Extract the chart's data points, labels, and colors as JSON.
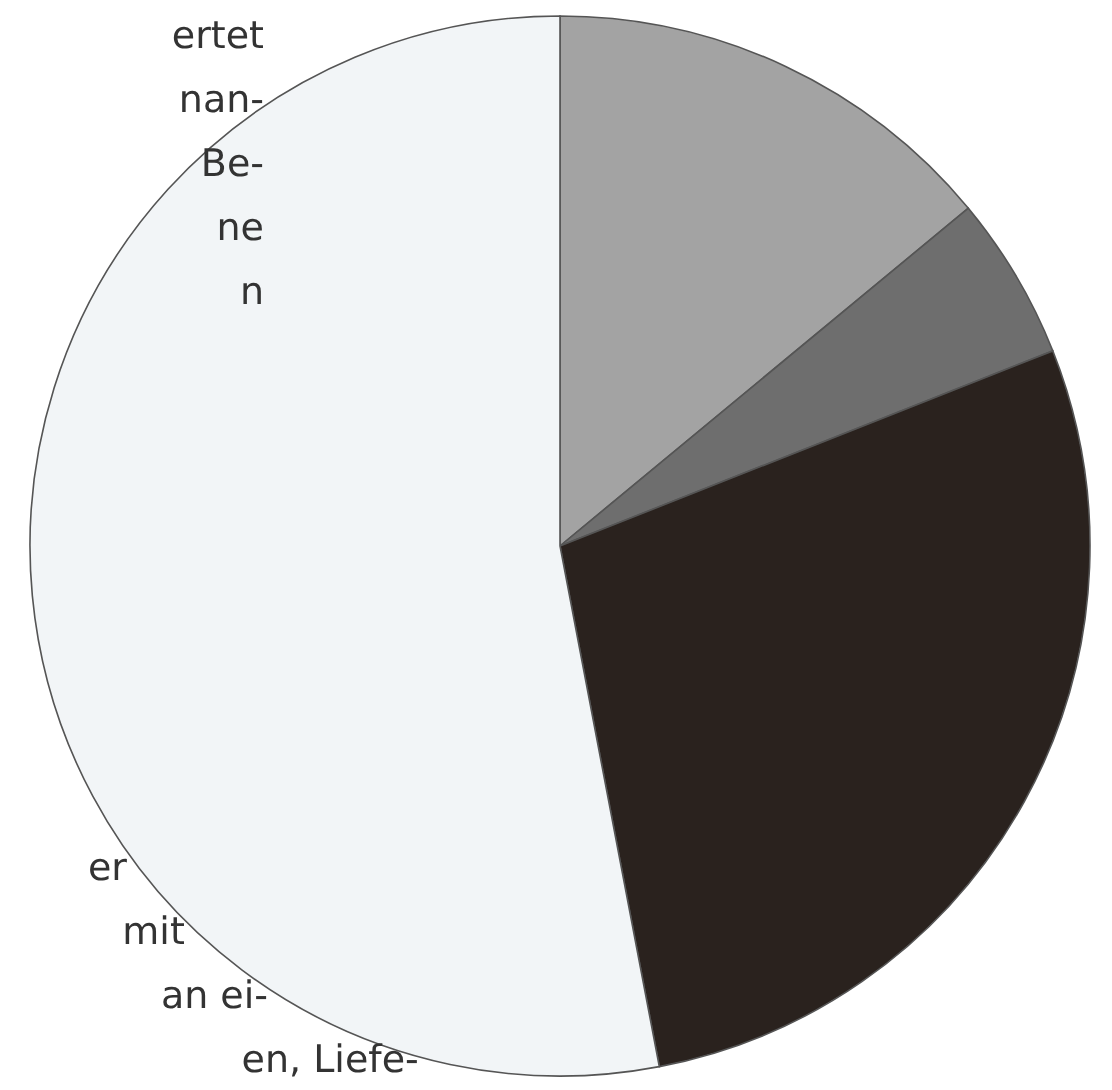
{
  "chart_data": {
    "type": "pie",
    "categories": [
      null,
      null,
      null,
      null
    ],
    "values": [
      14,
      5,
      28,
      53
    ],
    "colors": [
      "#a3a3a3",
      "#6e6e6e",
      "#2a221e",
      "#f2f5f7"
    ],
    "annotations": [
      "ertet",
      "nan-",
      "Be-",
      "ne",
      "n",
      "er",
      "mit",
      "an ei-",
      "en, Liefe-"
    ]
  }
}
